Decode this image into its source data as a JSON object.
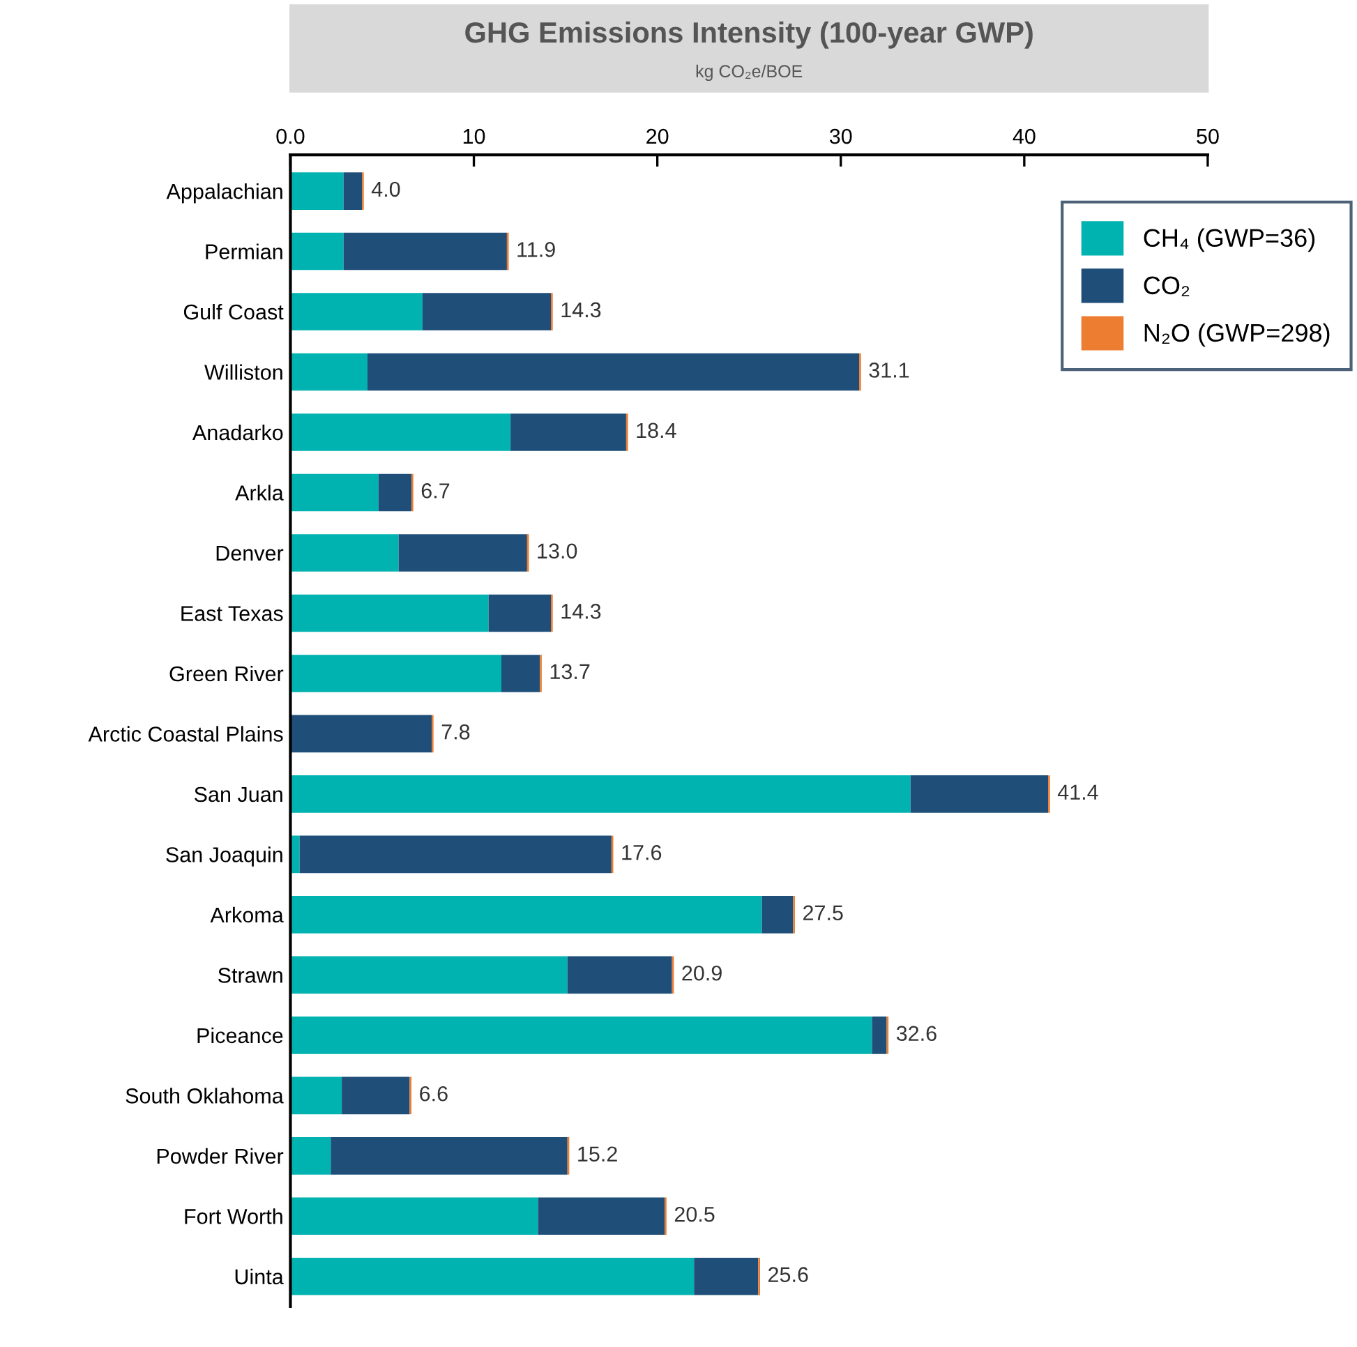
{
  "chart_data": {
    "type": "bar",
    "orientation": "horizontal",
    "stacked": true,
    "title": "GHG Emissions Intensity (100-year GWP)",
    "subtitle": "kg CO₂e/BOE",
    "categories": [
      "Appalachian",
      "Permian",
      "Gulf Coast",
      "Williston",
      "Anadarko",
      "Arkla",
      "Denver",
      "East Texas",
      "Green River",
      "Arctic Coastal Plains",
      "San Juan",
      "San Joaquin",
      "Arkoma",
      "Strawn",
      "Piceance",
      "South Oklahoma",
      "Powder River",
      "Fort Worth",
      "Uinta"
    ],
    "series": [
      {
        "name": "CH₄ (GWP=36)",
        "color": "#00b2b0",
        "values": [
          2.9,
          2.9,
          7.2,
          4.2,
          12.0,
          4.8,
          5.9,
          10.8,
          11.5,
          null,
          33.8,
          0.5,
          25.7,
          15.1,
          31.7,
          2.8,
          2.2,
          13.5,
          22.0
        ]
      },
      {
        "name": "CO₂",
        "color": "#1f4e79",
        "values": [
          1.0,
          8.9,
          7.0,
          26.8,
          6.3,
          1.8,
          7.0,
          3.4,
          2.1,
          7.7,
          7.5,
          17.0,
          1.7,
          5.7,
          0.8,
          3.7,
          12.9,
          6.9,
          3.5
        ]
      },
      {
        "name": "N₂O (GWP=298)",
        "color": "#ed7d31",
        "values": [
          0.1,
          0.1,
          0.1,
          0.1,
          0.1,
          0.1,
          0.1,
          0.1,
          0.1,
          0.1,
          0.1,
          0.1,
          0.1,
          0.1,
          0.1,
          0.1,
          0.1,
          0.1,
          0.1
        ]
      }
    ],
    "totals": [
      "4.0",
      "11.9",
      "14.3",
      "31.1",
      "18.4",
      "6.7",
      "13.0",
      "14.3",
      "13.7",
      "7.8",
      "41.4",
      "17.6",
      "27.5",
      "20.9",
      "32.6",
      "6.6",
      "15.2",
      "20.5",
      "25.6"
    ],
    "xlim": [
      0,
      50
    ],
    "xticks": [
      {
        "value": 0,
        "label": "0.0"
      },
      10,
      20,
      30,
      40,
      50
    ],
    "grid": false,
    "legend": "top right"
  }
}
